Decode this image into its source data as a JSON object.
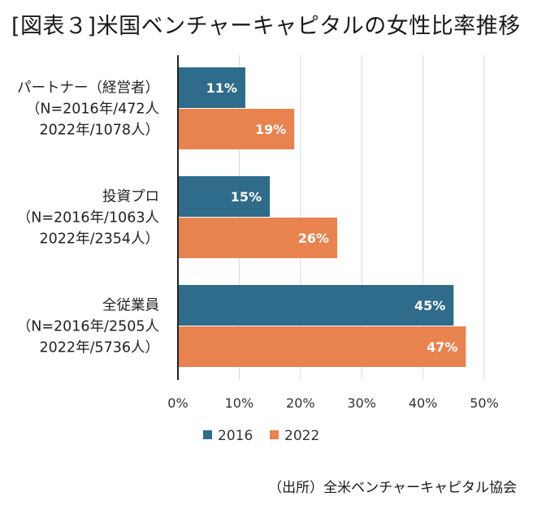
{
  "title": "[図表３]米国ベンチャーキャピタルの女性比率推移",
  "source": "（出所）全米ベンチャーキャピタル協会",
  "chart_data": {
    "type": "bar",
    "orientation": "horizontal",
    "categories": [
      [
        "パートナー（経営者）",
        "（N=2016年/472人",
        "2022年/1078人）"
      ],
      [
        "投資プロ",
        "（N=2016年/1063人",
        "2022年/2354人）"
      ],
      [
        "全従業員",
        "（N=2016年/2505人",
        "2022年/5736人）"
      ]
    ],
    "series": [
      {
        "name": "2016",
        "color": "#2f6b8a",
        "values": [
          11,
          15,
          45
        ],
        "labels": [
          "11%",
          "15%",
          "45%"
        ]
      },
      {
        "name": "2022",
        "color": "#e8834f",
        "values": [
          19,
          26,
          47
        ],
        "labels": [
          "19%",
          "26%",
          "47%"
        ]
      }
    ],
    "xlim": [
      0,
      50
    ],
    "xticks": [
      "0%",
      "10%",
      "20%",
      "30%",
      "40%",
      "50%"
    ],
    "grid": true,
    "legend": "bottom"
  }
}
